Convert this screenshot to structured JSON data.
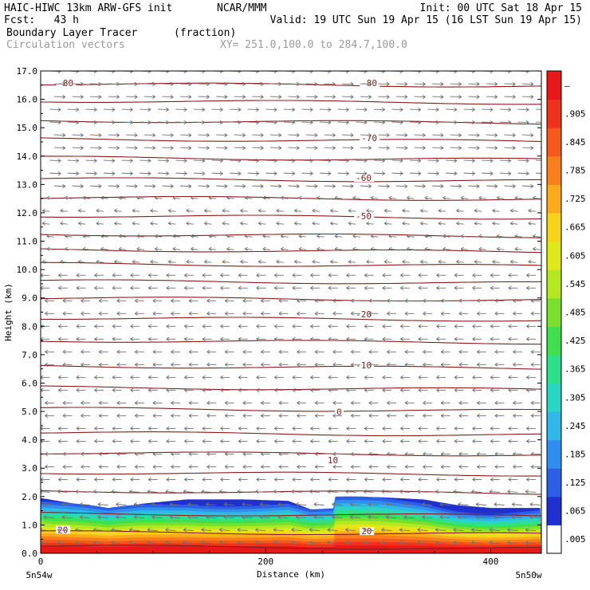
{
  "header": {
    "model": "HAIC-HIWC 13km ARW-GFS init",
    "org": "NCAR/MMM",
    "init": "Init: 00 UTC Sat 18 Apr 15",
    "fcst": "Fcst:   43 h",
    "valid": "Valid: 19 UTC Sun 19 Apr 15 (16 LST Sun 19 Apr 15)",
    "field": "Boundary Layer Tracer",
    "units": "(fraction)",
    "overlay": "Circulation vectors",
    "xy": "XY= 251.0,100.0 to 284.7,100.0"
  },
  "chart_data": {
    "type": "heatmap",
    "title": "Boundary Layer Tracer",
    "units": "(fraction)",
    "xlabel": "Distance (km)",
    "ylabel": "Height (km)",
    "xlim": [
      0,
      445
    ],
    "ylim": [
      0,
      17
    ],
    "x_ticks": [
      "0",
      "200",
      "400"
    ],
    "x_tick_values": [
      0,
      200,
      400
    ],
    "y_ticks": [
      "0.0",
      "1.0",
      "2.0",
      "3.0",
      "4.0",
      "5.0",
      "6.0",
      "7.0",
      "8.0",
      "9.0",
      "10.0",
      "11.0",
      "12.0",
      "13.0",
      "14.0",
      "15.0",
      "16.0",
      "17.0"
    ],
    "y_tick_values": [
      0,
      1,
      2,
      3,
      4,
      5,
      6,
      7,
      8,
      9,
      10,
      11,
      12,
      13,
      14,
      15,
      16,
      17
    ],
    "x_end_labels": [
      "5n54w",
      "5n50w"
    ],
    "colorbar": {
      "labels": [
        ".005",
        ".065",
        ".125",
        ".185",
        ".245",
        ".305",
        ".365",
        ".425",
        ".485",
        ".545",
        ".605",
        ".665",
        ".725",
        ".785",
        ".845",
        ".905",
        "–"
      ],
      "values": [
        0.005,
        0.065,
        0.125,
        0.185,
        0.245,
        0.305,
        0.365,
        0.425,
        0.485,
        0.545,
        0.605,
        0.665,
        0.725,
        0.785,
        0.845,
        0.905,
        0.965
      ],
      "colors": [
        "#ffffff",
        "#1f2fd0",
        "#2a5fe6",
        "#2f8ef0",
        "#2fb8e8",
        "#29d6c4",
        "#2ee08a",
        "#3fe04e",
        "#7ae02c",
        "#b4e820",
        "#e0e81c",
        "#f8d31c",
        "#fbaa1c",
        "#f97f1c",
        "#f55a1c",
        "#f0321c",
        "#e81818"
      ]
    },
    "bl_top_km": [
      [
        0,
        1.95
      ],
      [
        30,
        1.75
      ],
      [
        60,
        1.55
      ],
      [
        90,
        1.75
      ],
      [
        130,
        1.9
      ],
      [
        180,
        1.9
      ],
      [
        220,
        1.85
      ],
      [
        240,
        1.55
      ],
      [
        260,
        1.55
      ],
      [
        262,
        1.98
      ],
      [
        300,
        1.98
      ],
      [
        340,
        1.9
      ],
      [
        370,
        1.7
      ],
      [
        400,
        1.6
      ],
      [
        445,
        1.6
      ]
    ],
    "temperature_contours": {
      "label_values": [
        "-80",
        "-80",
        "-70",
        "-60",
        "-50",
        "-20",
        "-10",
        "0",
        "10",
        "20",
        "20"
      ],
      "label_positions": [
        [
          15,
          16.5
        ],
        [
          285,
          16.5
        ],
        [
          285,
          14.55
        ],
        [
          280,
          13.15
        ],
        [
          280,
          11.8
        ],
        [
          280,
          8.35
        ],
        [
          280,
          6.55
        ],
        [
          263,
          4.9
        ],
        [
          255,
          3.2
        ],
        [
          15,
          0.75
        ],
        [
          285,
          0.7
        ]
      ],
      "contour_heights_km": [
        0.25,
        0.75,
        1.4,
        2.2,
        2.85,
        3.55,
        4.25,
        5.1,
        5.85,
        6.6,
        7.5,
        8.3,
        9.0,
        9.6,
        10.2,
        10.7,
        11.25,
        11.9,
        12.55,
        13.2,
        13.95,
        14.6,
        15.25,
        15.95,
        16.55
      ]
    },
    "vectors": {
      "name": "Circulation vectors",
      "regime": [
        {
          "z_min": 12.5,
          "z_max": 17.0,
          "u": 1,
          "w": -0.05
        },
        {
          "z_min": 10.0,
          "z_max": 12.5,
          "u": -0.6,
          "w": 0.1
        },
        {
          "z_min": 2.5,
          "z_max": 10.0,
          "u": -0.8,
          "w": 0.0
        },
        {
          "z_min": 0.2,
          "z_max": 2.5,
          "u": -0.9,
          "w": 0.1
        }
      ]
    }
  }
}
